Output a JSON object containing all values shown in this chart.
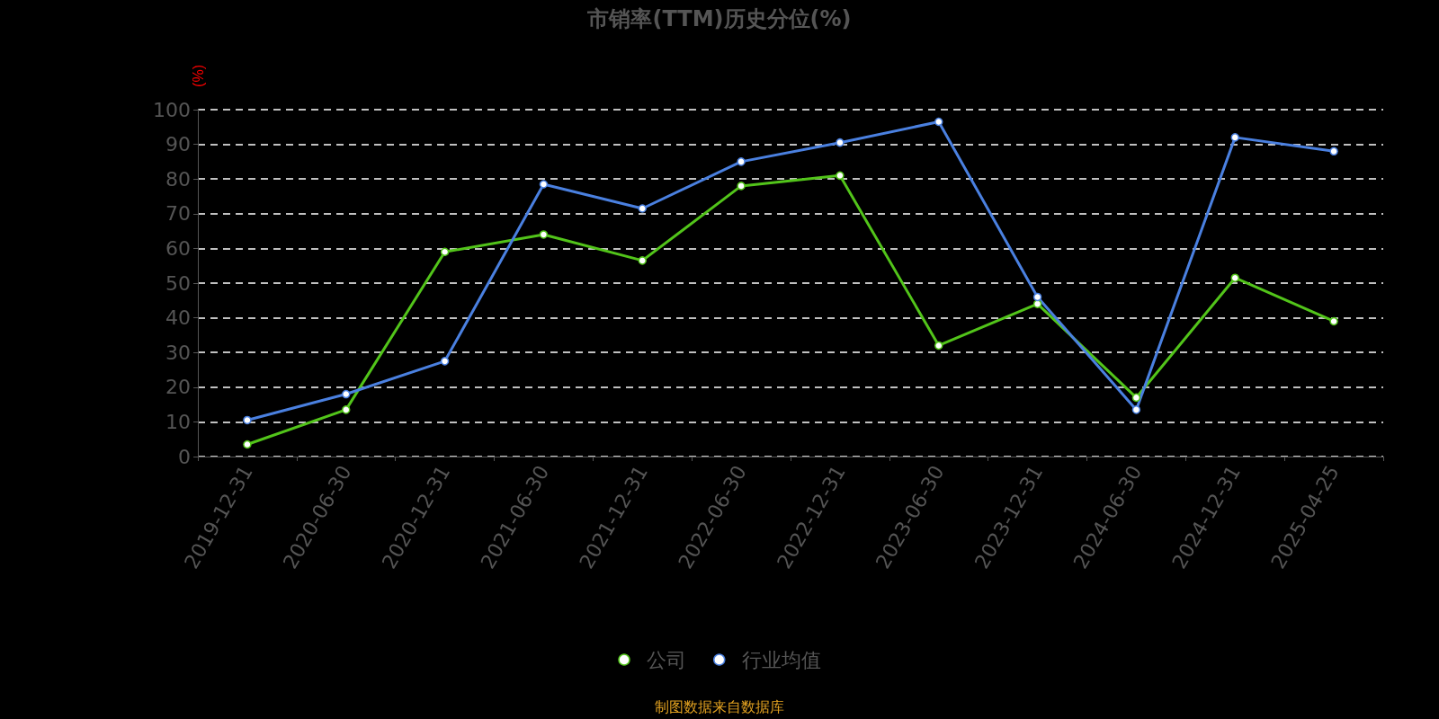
{
  "chart_data": {
    "type": "line",
    "title": "市销率(TTM)历史分位(%)",
    "ylabel": "(%)",
    "categories": [
      "2019-12-31",
      "2020-06-30",
      "2020-12-31",
      "2021-06-30",
      "2021-12-31",
      "2022-06-30",
      "2022-12-31",
      "2023-06-30",
      "2023-12-31",
      "2024-06-30",
      "2024-12-31",
      "2025-04-25"
    ],
    "series": [
      {
        "name": "公司",
        "color": "#52c41a",
        "values": [
          3.5,
          13.5,
          59,
          64,
          56.5,
          78,
          81,
          32,
          44,
          17,
          51.5,
          39
        ]
      },
      {
        "name": "行业均值",
        "color": "#4a80e0",
        "values": [
          10.5,
          18,
          27.5,
          78.5,
          71.5,
          85,
          90.5,
          96.5,
          46,
          13.5,
          92,
          88
        ]
      }
    ],
    "ylim": [
      0,
      100
    ],
    "yticks": [
      0,
      10,
      20,
      30,
      40,
      50,
      60,
      70,
      80,
      90,
      100
    ],
    "grid": "y",
    "legend": "bottom",
    "marker": "circle",
    "line_style": "solid",
    "annotations": [
      "制图数据来自数据库"
    ]
  }
}
